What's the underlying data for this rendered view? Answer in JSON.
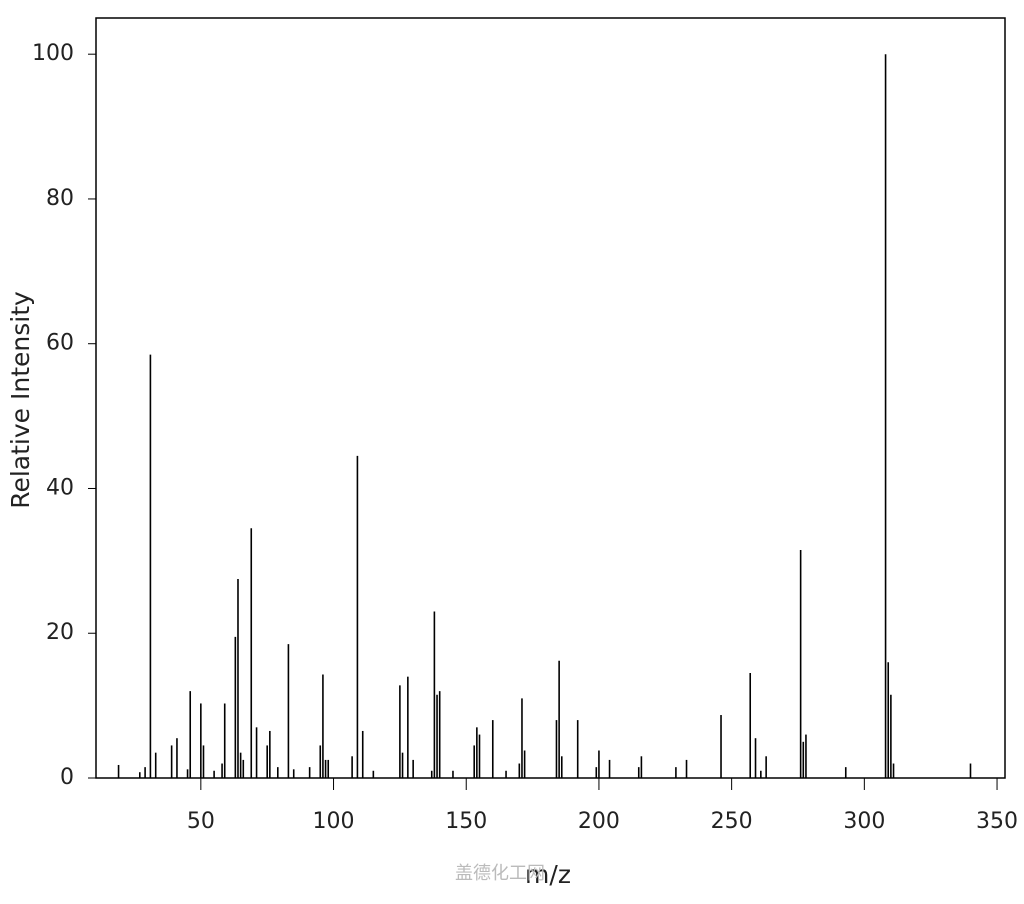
{
  "chart_data": {
    "type": "stick",
    "x_label": "m/z",
    "y_label": "Relative Intensity",
    "watermark": "盖德化工网",
    "xlim": [
      10.5,
      353
    ],
    "ylim": [
      0,
      105
    ],
    "xticks": [
      50,
      100,
      150,
      200,
      250,
      300,
      350
    ],
    "yticks": [
      0,
      20,
      40,
      60,
      80,
      100
    ],
    "color": "#000000",
    "x": [
      19,
      27,
      29,
      31,
      33,
      39,
      41,
      45,
      46,
      50,
      51,
      55,
      58,
      59,
      63,
      64,
      65,
      66,
      69,
      71,
      75,
      76,
      79,
      83,
      85,
      91,
      95,
      96,
      97,
      98,
      107,
      109,
      111,
      115,
      125,
      126,
      128,
      130,
      137,
      138,
      139,
      140,
      145,
      153,
      154,
      155,
      160,
      165,
      170,
      171,
      172,
      184,
      185,
      186,
      192,
      199,
      200,
      204,
      215,
      216,
      229,
      233,
      246,
      257,
      259,
      261,
      263,
      276,
      277,
      278,
      293,
      308,
      309,
      310,
      311,
      340
    ],
    "values": [
      1.8,
      0.8,
      1.5,
      58.5,
      3.5,
      4.5,
      5.5,
      1.2,
      12,
      10.3,
      4.5,
      1.0,
      2.0,
      10.3,
      19.5,
      27.5,
      3.5,
      2.5,
      34.5,
      7,
      4.5,
      6.5,
      1.5,
      18.5,
      1.2,
      1.5,
      4.5,
      14.3,
      2.5,
      2.5,
      3.0,
      44.5,
      6.5,
      1.0,
      12.8,
      3.5,
      14,
      2.5,
      1.0,
      23,
      11.5,
      12,
      1.0,
      4.5,
      7,
      6,
      8,
      1.0,
      2.0,
      11,
      3.8,
      8,
      16.2,
      3,
      8,
      1.5,
      3.8,
      2.5,
      1.5,
      3,
      1.5,
      2.5,
      8.7,
      14.5,
      5.5,
      1.0,
      3,
      31.5,
      5,
      6,
      1.5,
      100,
      16,
      11.5,
      2,
      2
    ]
  }
}
